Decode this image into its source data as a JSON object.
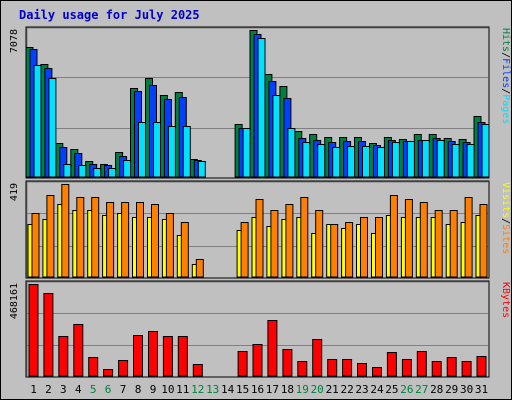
{
  "chart_data": {
    "type": "bar",
    "title": "Daily usage for July 2025",
    "days": [
      "1",
      "2",
      "3",
      "4",
      "5",
      "6",
      "7",
      "8",
      "9",
      "10",
      "11",
      "12",
      "13",
      "14",
      "15",
      "16",
      "17",
      "18",
      "19",
      "20",
      "21",
      "22",
      "23",
      "24",
      "25",
      "26",
      "27",
      "28",
      "29",
      "30",
      "31"
    ],
    "weekend_days": [
      "5",
      "6",
      "12",
      "13",
      "19",
      "20",
      "26",
      "27"
    ],
    "colors": {
      "title": "#0000cc",
      "hits": "#008040",
      "files": "#0040ff",
      "pages": "#00e0ff",
      "visits": "#ffff00",
      "sites": "#ff8000",
      "kbytes": "#ff0000",
      "weekend_label": "#008040",
      "plot_bg": "#c0c0c0"
    },
    "panels": [
      {
        "id": "hits-files-pages",
        "max_label": "7078",
        "ymax": 7078,
        "legend": [
          {
            "text": "Hits",
            "color": "#008040"
          },
          {
            "text": "/",
            "color": "#000000"
          },
          {
            "text": "Files",
            "color": "#0040ff"
          },
          {
            "text": "/",
            "color": "#000000"
          },
          {
            "text": "Pages",
            "color": "#00e0ff"
          }
        ],
        "series": [
          {
            "name": "Hits",
            "color": "#008040",
            "values": [
              6250,
              5450,
              1650,
              1350,
              750,
              650,
              1200,
              4300,
              4750,
              3950,
              4100,
              850,
              0,
              0,
              2550,
              7078,
              4950,
              4400,
              2200,
              2050,
              1950,
              1950,
              1950,
              1650,
              1950,
              1850,
              2050,
              2050,
              1900,
              1850,
              2950
            ]
          },
          {
            "name": "Files",
            "color": "#0040ff",
            "values": [
              6150,
              5250,
              1450,
              1150,
              620,
              560,
              1000,
              4150,
              4450,
              3750,
              3850,
              800,
              0,
              0,
              2350,
              6900,
              4600,
              3800,
              1900,
              1800,
              1700,
              1750,
              1750,
              1550,
              1800,
              1750,
              1800,
              1900,
              1750,
              1700,
              2650
            ]
          },
          {
            "name": "Pages",
            "color": "#00e0ff",
            "values": [
              5400,
              4750,
              620,
              560,
              440,
              410,
              820,
              2650,
              2650,
              2450,
              2450,
              780,
              0,
              0,
              2350,
              6700,
              3950,
              2350,
              1700,
              1600,
              1450,
              1500,
              1500,
              1450,
              1700,
              1750,
              1800,
              1800,
              1600,
              1600,
              2550
            ]
          }
        ]
      },
      {
        "id": "visits-sites",
        "max_label": "419",
        "ymax": 419,
        "legend": [
          {
            "text": "Visits",
            "color": "#ffff00"
          },
          {
            "text": "/",
            "color": "#000000"
          },
          {
            "text": "Sites",
            "color": "#ff8000"
          }
        ],
        "series": [
          {
            "name": "Visits",
            "color": "#ffff00",
            "values": [
              240,
              260,
              330,
              300,
              300,
              280,
              290,
              270,
              270,
              260,
              190,
              60,
              0,
              0,
              210,
              270,
              230,
              260,
              270,
              200,
              240,
              220,
              240,
              200,
              280,
              270,
              270,
              270,
              240,
              250,
              280
            ]
          },
          {
            "name": "Sites",
            "color": "#ff8000",
            "values": [
              290,
              370,
              419,
              360,
              360,
              340,
              340,
              340,
              330,
              290,
              250,
              80,
              0,
              0,
              250,
              350,
              300,
              330,
              360,
              300,
              240,
              250,
              270,
              270,
              370,
              350,
              340,
              300,
              300,
              360,
              330
            ]
          }
        ]
      },
      {
        "id": "kbytes",
        "max_label": "468161",
        "ymax": 468161,
        "legend": [
          {
            "text": "KBytes",
            "color": "#ff0000"
          }
        ],
        "series": [
          {
            "name": "KBytes",
            "color": "#ff0000",
            "values": [
              468161,
              420000,
              205000,
              265000,
              95000,
              38000,
              80000,
              210000,
              230000,
              205000,
              205000,
              60000,
              0,
              0,
              125000,
              165000,
              285000,
              135000,
              75000,
              190000,
              85000,
              85000,
              65000,
              45000,
              120000,
              85000,
              125000,
              75000,
              95000,
              75000,
              100000
            ]
          }
        ]
      }
    ]
  }
}
